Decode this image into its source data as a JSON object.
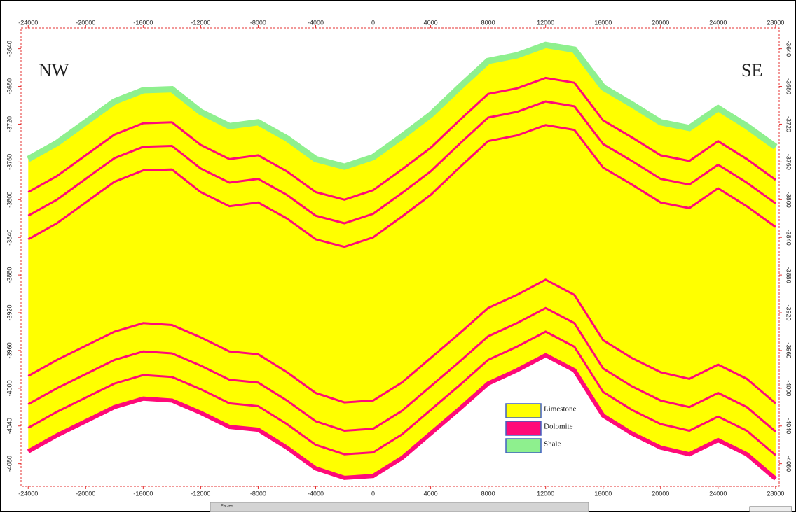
{
  "chart_data": {
    "type": "cross-section",
    "labels": {
      "left": "NW",
      "right": "SE"
    },
    "x": [
      -24000,
      -22000,
      -20000,
      -18000,
      -16000,
      -14000,
      -12000,
      -10000,
      -8000,
      -6000,
      -4000,
      -2000,
      0,
      2000,
      4000,
      6000,
      8000,
      10000,
      12000,
      14000,
      16000,
      18000,
      20000,
      22000,
      24000,
      26000,
      28000
    ],
    "xlim": [
      -24500,
      28250
    ],
    "ylim": [
      -3618,
      -4104
    ],
    "xticks": [
      -24000,
      -20000,
      -16000,
      -12000,
      -8000,
      -4000,
      0,
      4000,
      8000,
      12000,
      16000,
      20000,
      24000,
      28000
    ],
    "yticks": [
      -3640,
      -3680,
      -3720,
      -3760,
      -3800,
      -3840,
      -3880,
      -3920,
      -3960,
      -4000,
      -4040,
      -4080
    ],
    "horizons": {
      "top": [
        -3757,
        -3740,
        -3718,
        -3696,
        -3684,
        -3683,
        -3707,
        -3722,
        -3718,
        -3735,
        -3757,
        -3765,
        -3755,
        -3733,
        -3710,
        -3681,
        -3653,
        -3647,
        -3636,
        -3641,
        -3681,
        -3699,
        -3718,
        -3724,
        -3703,
        -3722,
        -3744
      ],
      "base": [
        -4067,
        -4050,
        -4035,
        -4020,
        -4011,
        -4013,
        -4026,
        -4041,
        -4044,
        -4063,
        -4085,
        -4095,
        -4093,
        -4074,
        -4048,
        -4022,
        -3995,
        -3981,
        -3965,
        -3981,
        -4029,
        -4048,
        -4063,
        -4070,
        -4055,
        -4070,
        -4096
      ],
      "dolomite": [
        [
          -3792,
          -3775,
          -3753,
          -3731,
          -3719,
          -3718,
          -3742,
          -3757,
          -3753,
          -3770,
          -3792,
          -3800,
          -3790,
          -3768,
          -3745,
          -3716,
          -3688,
          -3682,
          -3671,
          -3676,
          -3716,
          -3734,
          -3753,
          -3759,
          -3738,
          -3757,
          -3779
        ],
        [
          -3817,
          -3800,
          -3778,
          -3756,
          -3744,
          -3743,
          -3767,
          -3782,
          -3778,
          -3795,
          -3817,
          -3825,
          -3815,
          -3793,
          -3770,
          -3741,
          -3713,
          -3707,
          -3696,
          -3701,
          -3741,
          -3759,
          -3778,
          -3784,
          -3763,
          -3782,
          -3804
        ],
        [
          -3842,
          -3825,
          -3803,
          -3781,
          -3769,
          -3768,
          -3792,
          -3807,
          -3803,
          -3820,
          -3842,
          -3850,
          -3840,
          -3818,
          -3795,
          -3766,
          -3738,
          -3732,
          -3721,
          -3726,
          -3766,
          -3784,
          -3803,
          -3809,
          -3788,
          -3807,
          -3829
        ],
        [
          -3987,
          -3970,
          -3955,
          -3940,
          -3931,
          -3933,
          -3946,
          -3961,
          -3964,
          -3983,
          -4005,
          -4015,
          -4013,
          -3994,
          -3968,
          -3942,
          -3915,
          -3901,
          -3885,
          -3901,
          -3949,
          -3968,
          -3983,
          -3990,
          -3975,
          -3990,
          -4016
        ],
        [
          -4017,
          -4000,
          -3985,
          -3970,
          -3961,
          -3963,
          -3976,
          -3991,
          -3994,
          -4013,
          -4035,
          -4045,
          -4043,
          -4024,
          -3998,
          -3972,
          -3945,
          -3931,
          -3915,
          -3931,
          -3979,
          -3998,
          -4013,
          -4020,
          -4005,
          -4020,
          -4046
        ],
        [
          -4042,
          -4025,
          -4010,
          -3995,
          -3986,
          -3988,
          -4001,
          -4016,
          -4019,
          -4038,
          -4060,
          -4070,
          -4068,
          -4049,
          -4023,
          -3997,
          -3970,
          -3956,
          -3940,
          -3956,
          -4004,
          -4023,
          -4038,
          -4045,
          -4030,
          -4045,
          -4071
        ]
      ]
    },
    "legend": [
      {
        "name": "Limestone",
        "color": "#ffff00"
      },
      {
        "name": "Dolomite",
        "color": "#ff0a78"
      },
      {
        "name": "Shale",
        "color": "#8ef08e"
      }
    ]
  },
  "ui": {
    "panel_label": "Facies"
  }
}
